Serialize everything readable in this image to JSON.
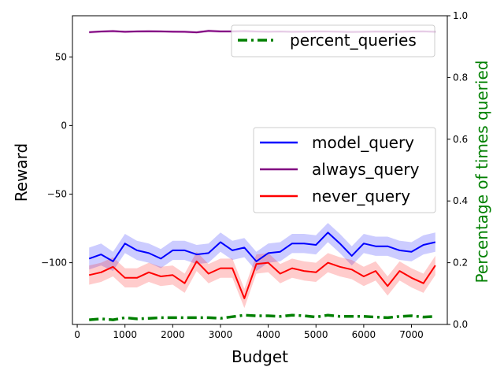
{
  "chart_data": {
    "type": "line",
    "xlabel": "Budget",
    "ylabel": "Reward",
    "y2label": "Percentage of times queried",
    "xlim": [
      -100,
      7750
    ],
    "ylim": [
      -145,
      80
    ],
    "y2lim": [
      0,
      1
    ],
    "x_ticks": [
      0,
      1000,
      2000,
      3000,
      4000,
      5000,
      6000,
      7000
    ],
    "y_ticks": [
      -100,
      -50,
      0,
      50
    ],
    "y_tick_labels": [
      "−100",
      "−50",
      "0",
      "50"
    ],
    "y2_ticks": [
      0,
      0.2,
      0.4,
      0.6,
      0.8,
      1.0
    ],
    "y2_tick_labels": [
      "0.0",
      "0.2",
      "0.4",
      "0.6",
      "0.8",
      "1.0"
    ],
    "x": [
      250,
      500,
      750,
      1000,
      1250,
      1500,
      1750,
      2000,
      2250,
      2500,
      2750,
      3000,
      3250,
      3500,
      3750,
      4000,
      4250,
      4500,
      4750,
      5000,
      5250,
      5500,
      5750,
      6000,
      6250,
      6500,
      6750,
      7000,
      7250,
      7500
    ],
    "series": [
      {
        "name": "model_query",
        "color": "#0000ff",
        "axis": "left",
        "values": [
          -97,
          -94,
          -99,
          -86,
          -91,
          -93,
          -97,
          -91,
          -91,
          -94,
          -93,
          -85,
          -91,
          -89,
          -99,
          -93,
          -92,
          -86,
          -86,
          -87,
          -78,
          -86,
          -95,
          -86,
          -88,
          -88,
          -91,
          -92,
          -87,
          -85
        ],
        "band": [
          8,
          8,
          7,
          7,
          7,
          7,
          7,
          7,
          7,
          7,
          7,
          7,
          7,
          7,
          7,
          7,
          7,
          7,
          7,
          7,
          7,
          7,
          7,
          7,
          7,
          7,
          7,
          7,
          7,
          7
        ]
      },
      {
        "name": "always_query",
        "color": "#800080",
        "axis": "left",
        "values": [
          68,
          68.5,
          68.8,
          68.3,
          68.6,
          68.7,
          68.6,
          68.4,
          68.3,
          67.9,
          69.0,
          68.6,
          68.6,
          68.8,
          68.5,
          68.4,
          68.5,
          68.3,
          68.4,
          68.6,
          68.5,
          68.4,
          68.2,
          68.3,
          68.5,
          68.4,
          68.4,
          68.5,
          68.6,
          68.3
        ],
        "band": [
          1,
          1,
          1,
          1,
          1,
          1,
          1,
          1,
          1,
          1,
          1,
          1,
          1,
          1,
          1,
          1,
          1,
          1,
          1,
          1,
          1,
          1,
          1,
          1,
          1,
          1,
          1,
          1,
          1,
          1
        ]
      },
      {
        "name": "never_query",
        "color": "#ff0000",
        "axis": "left",
        "values": [
          -109,
          -107,
          -103,
          -111,
          -111,
          -107,
          -110,
          -109,
          -115,
          -99,
          -108,
          -104,
          -104,
          -126,
          -101,
          -100,
          -108,
          -104,
          -106,
          -107,
          -100,
          -103,
          -105,
          -110,
          -106,
          -117,
          -106,
          -111,
          -115,
          -102
        ],
        "band": [
          7,
          7,
          7,
          7,
          7,
          7,
          7,
          7,
          7,
          7,
          7,
          7,
          7,
          7,
          7,
          7,
          7,
          7,
          7,
          7,
          7,
          7,
          7,
          7,
          7,
          7,
          7,
          7,
          7,
          7
        ]
      },
      {
        "name": "percent_queries",
        "color": "#008000",
        "axis": "right",
        "values": [
          0.015,
          0.018,
          0.015,
          0.022,
          0.018,
          0.02,
          0.022,
          0.022,
          0.022,
          0.022,
          0.022,
          0.02,
          0.025,
          0.03,
          0.028,
          0.028,
          0.026,
          0.03,
          0.028,
          0.024,
          0.03,
          0.026,
          0.026,
          0.026,
          0.024,
          0.022,
          0.026,
          0.028,
          0.024,
          0.026
        ]
      }
    ],
    "legend_right": {
      "placement": "top-right",
      "entries": [
        "percent_queries"
      ]
    },
    "legend_left": {
      "placement": "center-right",
      "entries": [
        "model_query",
        "always_query",
        "never_query"
      ]
    }
  }
}
